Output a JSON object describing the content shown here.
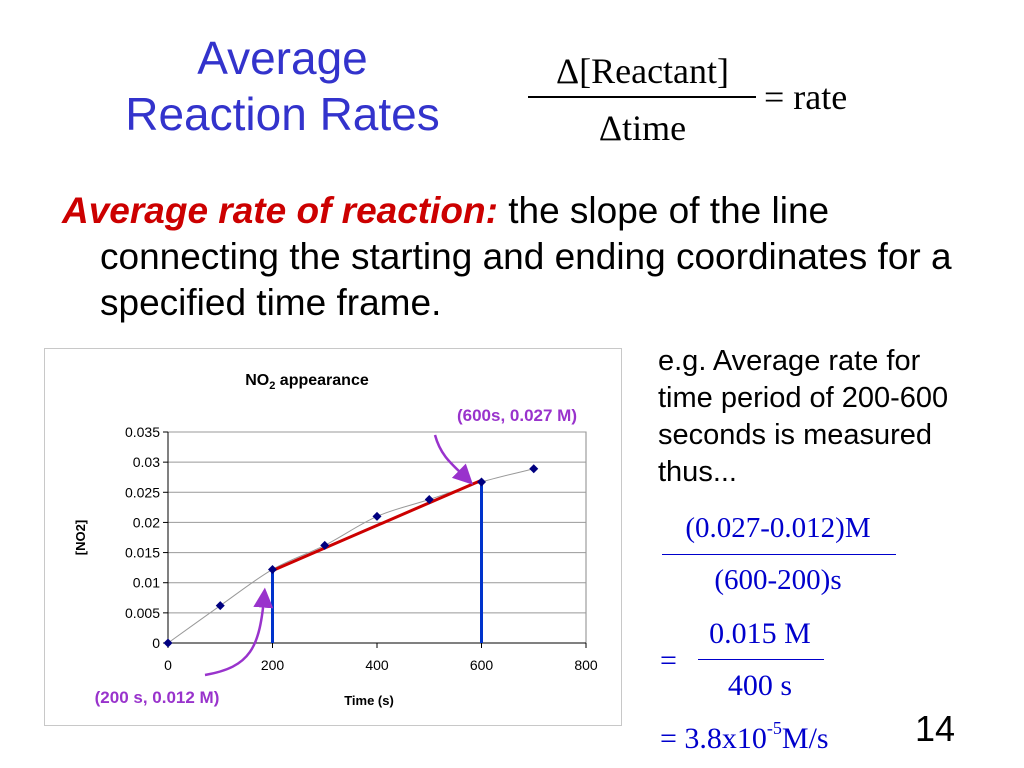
{
  "slide": {
    "title_line1": "Average",
    "title_line2": "Reaction Rates",
    "formula": {
      "numerator": "Δ[Reactant]",
      "denominator": "Δtime",
      "rhs": "= rate"
    },
    "definition": {
      "term": "Average rate of reaction:",
      "text": " the slope of the line connecting the starting and ending coordinates for a specified time frame."
    },
    "note": "e.g. Average rate for time period of 200-600 seconds is measured thus...",
    "calculation": {
      "frac1_numerator": "(0.027-0.012)M",
      "frac1_denominator": "(600-200)s",
      "equals": "=",
      "frac2_numerator": "0.015 M",
      "frac2_denominator": "400 s",
      "result_prefix": "= 3.8x10",
      "result_exponent": "-5",
      "result_unit": "M/s"
    },
    "page_number": "14"
  },
  "colors": {
    "title": "#3333cc",
    "term": "#cc0000",
    "calculation": "#0000cc",
    "markers": "#000080",
    "slope_line": "#cc0000",
    "vertical_lines": "#0033cc",
    "callouts": "#9933cc"
  },
  "chart_data": {
    "type": "scatter",
    "title_main": "NO",
    "title_sub": "2",
    "title_rest": " appearance",
    "xlabel": "Time (s)",
    "ylabel": "[NO2]",
    "xlim": [
      0,
      800
    ],
    "ylim": [
      0,
      0.035
    ],
    "x_ticks": [
      "0",
      "200",
      "400",
      "600",
      "800"
    ],
    "y_ticks": [
      "0",
      "0.005",
      "0.01",
      "0.015",
      "0.02",
      "0.025",
      "0.03",
      "0.035"
    ],
    "grid": "horizontal",
    "series": [
      {
        "x": [
          0,
          100,
          200,
          300,
          400,
          500,
          600,
          700
        ],
        "y": [
          0.0,
          0.0062,
          0.0122,
          0.0162,
          0.021,
          0.0238,
          0.0267,
          0.0289
        ],
        "trendline": "smooth"
      }
    ],
    "segment": {
      "x": [
        200,
        600
      ],
      "y": [
        0.012,
        0.027
      ]
    },
    "vertical_lines_x": [
      200,
      600
    ],
    "annotations": [
      {
        "text": "(600s, 0.027 M)",
        "x": 600,
        "y": 0.027
      },
      {
        "text": "(200 s, 0.012 M)",
        "x": 200,
        "y": 0.012
      }
    ]
  }
}
